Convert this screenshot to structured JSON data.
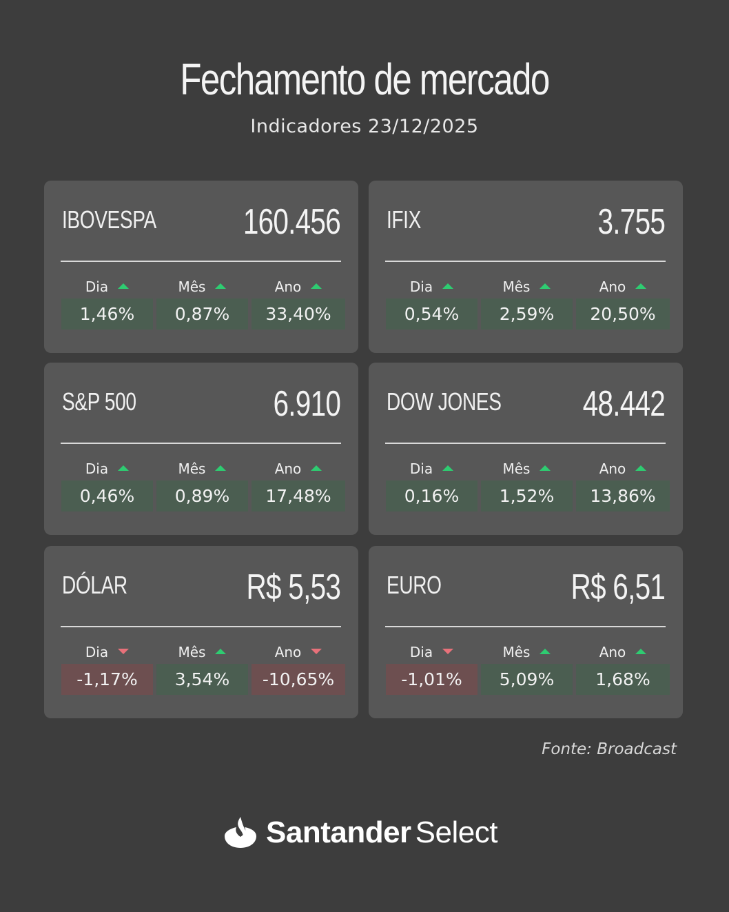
{
  "header": {
    "title": "Fechamento de mercado",
    "subtitle": "Indicadores 23/12/2025"
  },
  "cards": [
    {
      "name": "IBOVESPA",
      "value": "160.456",
      "metrics": [
        {
          "label": "Dia",
          "value": "1,46%",
          "dir": "up"
        },
        {
          "label": "Mês",
          "value": "0,87%",
          "dir": "up"
        },
        {
          "label": "Ano",
          "value": "33,40%",
          "dir": "up"
        }
      ]
    },
    {
      "name": "IFIX",
      "value": "3.755",
      "metrics": [
        {
          "label": "Dia",
          "value": "0,54%",
          "dir": "up"
        },
        {
          "label": "Mês",
          "value": "2,59%",
          "dir": "up"
        },
        {
          "label": "Ano",
          "value": "20,50%",
          "dir": "up"
        }
      ]
    },
    {
      "name": "S&P 500",
      "value": "6.910",
      "metrics": [
        {
          "label": "Dia",
          "value": "0,46%",
          "dir": "up"
        },
        {
          "label": "Mês",
          "value": "0,89%",
          "dir": "up"
        },
        {
          "label": "Ano",
          "value": "17,48%",
          "dir": "up"
        }
      ]
    },
    {
      "name": "DOW JONES",
      "value": "48.442",
      "metrics": [
        {
          "label": "Dia",
          "value": "0,16%",
          "dir": "up"
        },
        {
          "label": "Mês",
          "value": "1,52%",
          "dir": "up"
        },
        {
          "label": "Ano",
          "value": "13,86%",
          "dir": "up"
        }
      ]
    },
    {
      "name": "DÓLAR",
      "value": "R$ 5,53",
      "metrics": [
        {
          "label": "Dia",
          "value": "-1,17%",
          "dir": "down"
        },
        {
          "label": "Mês",
          "value": "3,54%",
          "dir": "up"
        },
        {
          "label": "Ano",
          "value": "-10,65%",
          "dir": "down"
        }
      ]
    },
    {
      "name": "EURO",
      "value": "R$ 6,51",
      "metrics": [
        {
          "label": "Dia",
          "value": "-1,01%",
          "dir": "down"
        },
        {
          "label": "Mês",
          "value": "5,09%",
          "dir": "up"
        },
        {
          "label": "Ano",
          "value": "1,68%",
          "dir": "up"
        }
      ]
    }
  ],
  "source": "Fonte: Broadcast",
  "logo": {
    "icon": "santander-flame-icon",
    "brand": "Santander",
    "product": "Select"
  },
  "colors": {
    "background": "#3d3d3d",
    "card": "#575757",
    "positive_box": "#4b5e51",
    "negative_box": "#6d4f50",
    "arrow_up": "#2ecc71",
    "arrow_down": "#e8717a"
  }
}
